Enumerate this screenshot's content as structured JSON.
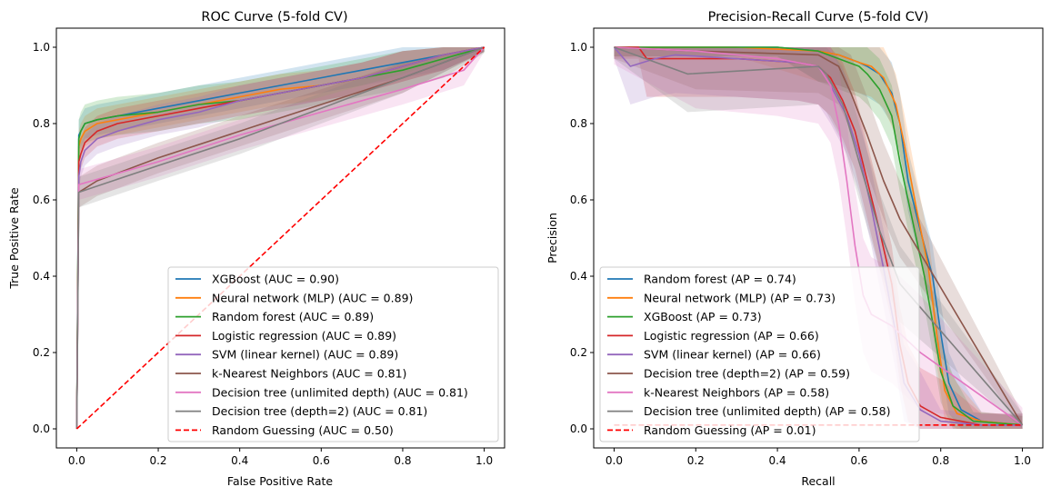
{
  "figure": {
    "background": "#ffffff"
  },
  "chart_data": [
    {
      "type": "line",
      "title": "ROC Curve (5-fold CV)",
      "xlabel": "False Positive Rate",
      "ylabel": "True Positive Rate",
      "xlim": [
        -0.05,
        1.05
      ],
      "ylim": [
        -0.05,
        1.05
      ],
      "xticks": [
        "0.0",
        "0.2",
        "0.4",
        "0.6",
        "0.8",
        "1.0"
      ],
      "yticks": [
        "0.0",
        "0.2",
        "0.4",
        "0.6",
        "0.8",
        "1.0"
      ],
      "grid": false,
      "legend_position": "lower-right",
      "bands": "shaded ±1 std across folds",
      "series": [
        {
          "name": "XGBoost (AUC = 0.90)",
          "model": "XGBoost",
          "auc": 0.9,
          "color": "#1f77b4",
          "x": [
            0,
            0.005,
            0.01,
            0.02,
            0.05,
            0.1,
            0.2,
            0.3,
            0.4,
            0.5,
            0.6,
            0.7,
            0.8,
            0.9,
            1.0
          ],
          "y": [
            0,
            0.77,
            0.78,
            0.8,
            0.81,
            0.82,
            0.84,
            0.86,
            0.88,
            0.9,
            0.92,
            0.94,
            0.96,
            0.98,
            1.0
          ],
          "band": 0.04
        },
        {
          "name": "Neural network (MLP) (AUC = 0.89)",
          "model": "Neural network (MLP)",
          "auc": 0.89,
          "color": "#ff7f0e",
          "x": [
            0,
            0.005,
            0.01,
            0.02,
            0.05,
            0.1,
            0.2,
            0.3,
            0.4,
            0.5,
            0.6,
            0.7,
            0.8,
            0.9,
            1.0
          ],
          "y": [
            0,
            0.74,
            0.76,
            0.78,
            0.8,
            0.81,
            0.83,
            0.85,
            0.87,
            0.89,
            0.9,
            0.92,
            0.95,
            0.98,
            1.0
          ],
          "band": 0.04
        },
        {
          "name": "Random forest (AUC = 0.89)",
          "model": "Random forest",
          "auc": 0.89,
          "color": "#2ca02c",
          "x": [
            0,
            0.005,
            0.01,
            0.02,
            0.05,
            0.1,
            0.2,
            0.3,
            0.4,
            0.5,
            0.6,
            0.7,
            0.8,
            0.9,
            1.0
          ],
          "y": [
            0,
            0.76,
            0.78,
            0.8,
            0.81,
            0.82,
            0.83,
            0.85,
            0.86,
            0.88,
            0.9,
            0.92,
            0.94,
            0.97,
            1.0
          ],
          "band": 0.05
        },
        {
          "name": "Logistic regression (AUC = 0.89)",
          "model": "Logistic regression",
          "auc": 0.89,
          "color": "#d62728",
          "x": [
            0,
            0.005,
            0.01,
            0.02,
            0.05,
            0.1,
            0.2,
            0.3,
            0.4,
            0.5,
            0.6,
            0.7,
            0.8,
            0.9,
            1.0
          ],
          "y": [
            0,
            0.7,
            0.72,
            0.75,
            0.78,
            0.8,
            0.82,
            0.84,
            0.86,
            0.88,
            0.9,
            0.92,
            0.95,
            0.98,
            1.0
          ],
          "band": 0.04
        },
        {
          "name": "SVM (linear kernel) (AUC = 0.89)",
          "model": "SVM (linear kernel)",
          "auc": 0.89,
          "color": "#9467bd",
          "x": [
            0,
            0.005,
            0.01,
            0.02,
            0.05,
            0.1,
            0.2,
            0.3,
            0.4,
            0.5,
            0.6,
            0.7,
            0.8,
            0.9,
            1.0
          ],
          "y": [
            0,
            0.66,
            0.7,
            0.73,
            0.76,
            0.78,
            0.81,
            0.83,
            0.86,
            0.88,
            0.9,
            0.92,
            0.95,
            0.98,
            1.0
          ],
          "band": 0.04
        },
        {
          "name": "k-Nearest Neighbors (AUC = 0.81)",
          "model": "k-Nearest Neighbors",
          "auc": 0.81,
          "color": "#8c564b",
          "x": [
            0,
            0.005,
            0.02,
            0.05,
            0.2,
            0.4,
            0.6,
            0.8,
            1.0
          ],
          "y": [
            0,
            0.62,
            0.63,
            0.65,
            0.71,
            0.78,
            0.85,
            0.92,
            1.0
          ],
          "band": 0.04
        },
        {
          "name": "Decision tree (unlimited depth) (AUC = 0.81)",
          "model": "Decision tree (unlimited depth)",
          "auc": 0.81,
          "color": "#e377c2",
          "x": [
            0,
            0.005,
            0.2,
            0.4,
            0.6,
            0.8,
            0.95,
            1.0
          ],
          "y": [
            0,
            0.64,
            0.7,
            0.77,
            0.83,
            0.89,
            0.94,
            1.0
          ],
          "band": 0.04
        },
        {
          "name": "Decision tree (depth=2) (AUC = 0.81)",
          "model": "Decision tree (depth=2)",
          "auc": 0.81,
          "color": "#7f7f7f",
          "x": [
            0,
            0.005,
            0.2,
            0.4,
            0.6,
            0.8,
            1.0
          ],
          "y": [
            0,
            0.62,
            0.69,
            0.76,
            0.84,
            0.92,
            1.0
          ],
          "band": 0.04
        },
        {
          "name": "Random Guessing (AUC = 0.50)",
          "model": "Random Guessing",
          "auc": 0.5,
          "color": "#ff0000",
          "dashed": true,
          "x": [
            0,
            1
          ],
          "y": [
            0,
            1
          ]
        }
      ]
    },
    {
      "type": "line",
      "title": "Precision-Recall Curve (5-fold CV)",
      "xlabel": "Recall",
      "ylabel": "Precision",
      "xlim": [
        -0.05,
        1.05
      ],
      "ylim": [
        -0.05,
        1.05
      ],
      "xticks": [
        "0.0",
        "0.2",
        "0.4",
        "0.6",
        "0.8",
        "1.0"
      ],
      "yticks": [
        "0.0",
        "0.2",
        "0.4",
        "0.6",
        "0.8",
        "1.0"
      ],
      "grid": false,
      "legend_position": "lower-left",
      "bands": "shaded ±1 std across folds",
      "series": [
        {
          "name": "Random forest (AP = 0.74)",
          "model": "Random forest",
          "ap": 0.74,
          "color": "#1f77b4",
          "x": [
            0,
            0.2,
            0.4,
            0.5,
            0.55,
            0.6,
            0.62,
            0.65,
            0.68,
            0.7,
            0.72,
            0.75,
            0.78,
            0.8,
            0.82,
            0.85,
            0.9,
            1.0
          ],
          "y": [
            1.0,
            1.0,
            1.0,
            0.99,
            0.98,
            0.96,
            0.95,
            0.93,
            0.88,
            0.8,
            0.65,
            0.52,
            0.4,
            0.25,
            0.12,
            0.05,
            0.02,
            0.01
          ],
          "band": 0.08
        },
        {
          "name": "Neural network (MLP) (AP = 0.73)",
          "model": "Neural network (MLP)",
          "ap": 0.73,
          "color": "#ff7f0e",
          "x": [
            0,
            0.05,
            0.3,
            0.5,
            0.55,
            0.6,
            0.63,
            0.66,
            0.69,
            0.71,
            0.74,
            0.77,
            0.79,
            0.81,
            0.84,
            0.9,
            1.0
          ],
          "y": [
            1.0,
            1.0,
            1.0,
            0.99,
            0.98,
            0.96,
            0.95,
            0.92,
            0.85,
            0.75,
            0.58,
            0.42,
            0.25,
            0.1,
            0.04,
            0.02,
            0.01
          ],
          "band": 0.08
        },
        {
          "name": "XGBoost (AP = 0.73)",
          "model": "XGBoost",
          "ap": 0.73,
          "color": "#2ca02c",
          "x": [
            0,
            0.2,
            0.4,
            0.5,
            0.55,
            0.6,
            0.62,
            0.65,
            0.68,
            0.7,
            0.73,
            0.76,
            0.78,
            0.8,
            0.83,
            0.88,
            1.0
          ],
          "y": [
            1.0,
            1.0,
            1.0,
            0.99,
            0.97,
            0.95,
            0.93,
            0.89,
            0.82,
            0.7,
            0.55,
            0.4,
            0.28,
            0.15,
            0.06,
            0.02,
            0.01
          ],
          "band": 0.08
        },
        {
          "name": "Logistic regression (AP = 0.66)",
          "model": "Logistic regression",
          "ap": 0.66,
          "color": "#d62728",
          "x": [
            0,
            0.06,
            0.08,
            0.3,
            0.45,
            0.5,
            0.53,
            0.56,
            0.59,
            0.62,
            0.65,
            0.68,
            0.7,
            0.72,
            0.75,
            0.8,
            0.9,
            1.0
          ],
          "y": [
            1.0,
            1.0,
            0.97,
            0.97,
            0.96,
            0.95,
            0.92,
            0.86,
            0.78,
            0.65,
            0.52,
            0.38,
            0.22,
            0.12,
            0.06,
            0.03,
            0.01,
            0.01
          ],
          "band": 0.1
        },
        {
          "name": "SVM (linear kernel) (AP = 0.66)",
          "model": "SVM (linear kernel)",
          "ap": 0.66,
          "color": "#9467bd",
          "x": [
            0,
            0.04,
            0.1,
            0.15,
            0.3,
            0.45,
            0.5,
            0.53,
            0.57,
            0.6,
            0.63,
            0.66,
            0.69,
            0.71,
            0.75,
            0.8,
            0.9,
            1.0
          ],
          "y": [
            1.0,
            0.95,
            0.97,
            0.98,
            0.97,
            0.96,
            0.95,
            0.9,
            0.82,
            0.72,
            0.58,
            0.42,
            0.25,
            0.12,
            0.05,
            0.02,
            0.01,
            0.01
          ],
          "band": 0.1
        },
        {
          "name": "Decision tree (depth=2) (AP = 0.59)",
          "model": "Decision tree (depth=2)",
          "ap": 0.59,
          "color": "#8c564b",
          "x": [
            0,
            0.2,
            0.5,
            0.55,
            0.58,
            0.62,
            0.66,
            0.7,
            1.0
          ],
          "y": [
            1.0,
            0.99,
            0.98,
            0.95,
            0.88,
            0.77,
            0.65,
            0.55,
            0.01
          ],
          "band": 0.1
        },
        {
          "name": "k-Nearest Neighbors (AP = 0.58)",
          "model": "k-Nearest Neighbors",
          "ap": 0.58,
          "color": "#e377c2",
          "x": [
            0,
            0.2,
            0.4,
            0.5,
            0.53,
            0.55,
            0.57,
            0.59,
            0.61,
            0.63,
            0.68,
            0.75,
            1.0
          ],
          "y": [
            1.0,
            0.99,
            0.97,
            0.95,
            0.9,
            0.8,
            0.65,
            0.48,
            0.35,
            0.3,
            0.27,
            0.2,
            0.01
          ],
          "band": 0.15
        },
        {
          "name": "Decision tree (unlimited depth) (AP = 0.58)",
          "model": "Decision tree (unlimited depth)",
          "ap": 0.58,
          "color": "#7f7f7f",
          "x": [
            0,
            0.18,
            0.5,
            0.52,
            0.56,
            0.6,
            0.65,
            0.7,
            1.0
          ],
          "y": [
            1.0,
            0.93,
            0.95,
            0.93,
            0.85,
            0.7,
            0.52,
            0.38,
            0.01
          ],
          "band": 0.1
        },
        {
          "name": "Random Guessing (AP = 0.01)",
          "model": "Random Guessing",
          "ap": 0.01,
          "color": "#ff0000",
          "dashed": true,
          "x": [
            0,
            1
          ],
          "y": [
            0.01,
            0.01
          ]
        }
      ]
    }
  ]
}
